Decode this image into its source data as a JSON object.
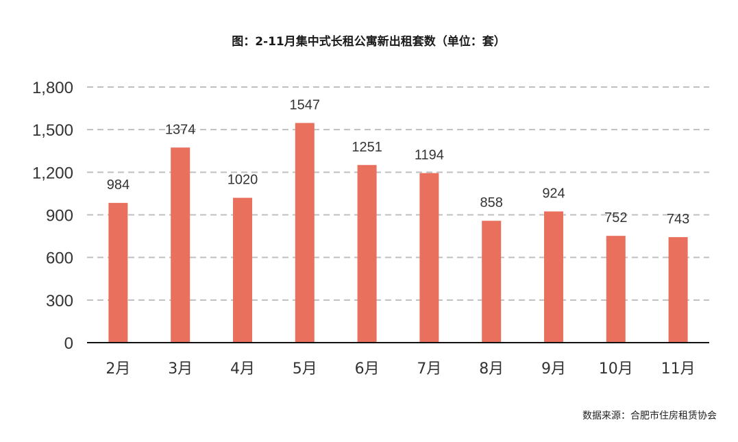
{
  "title": "图：2-11月集中式长租公寓新出租套数（单位：套）",
  "source": "数据来源：合肥市住房租赁协会",
  "colors": {
    "bar": "#e8705c",
    "grid": "#bfbfbf",
    "axis": "#111111",
    "text": "#333333"
  },
  "chart_data": {
    "type": "bar",
    "categories": [
      "2月",
      "3月",
      "4月",
      "5月",
      "6月",
      "7月",
      "8月",
      "9月",
      "10月",
      "11月"
    ],
    "values": [
      984,
      1374,
      1020,
      1547,
      1251,
      1194,
      858,
      924,
      752,
      743
    ],
    "yticks": [
      "0",
      "300",
      "600",
      "900",
      "1,200",
      "1,500",
      "1,800"
    ],
    "ylim": [
      0,
      1800
    ],
    "grid": true,
    "legend": "none"
  }
}
